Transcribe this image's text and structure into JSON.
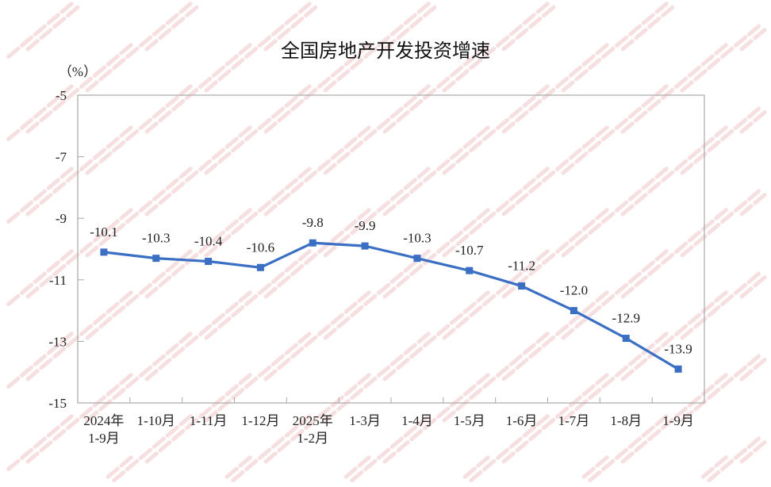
{
  "watermark": "北京房地产业协会",
  "chart_data": {
    "type": "line",
    "title": "全国房地产开发投资增速",
    "ylabel": "（%）",
    "xlabel": "",
    "categories": [
      [
        "2024年",
        "1-9月"
      ],
      [
        "1-10月"
      ],
      [
        "1-11月"
      ],
      [
        "1-12月"
      ],
      [
        "2025年",
        "1-2月"
      ],
      [
        "1-3月"
      ],
      [
        "1-4月"
      ],
      [
        "1-5月"
      ],
      [
        "1-6月"
      ],
      [
        "1-7月"
      ],
      [
        "1-8月"
      ],
      [
        "1-9月"
      ]
    ],
    "values": [
      -10.1,
      -10.3,
      -10.4,
      -10.6,
      -9.8,
      -9.9,
      -10.3,
      -10.7,
      -11.2,
      -12.0,
      -12.9,
      -13.9
    ],
    "data_labels": [
      "-10.1",
      "-10.3",
      "-10.4",
      "-10.6",
      "-9.8",
      "-9.9",
      "-10.3",
      "-10.7",
      "-11.2",
      "-12.0",
      "-12.9",
      "-13.9"
    ],
    "ylim": [
      -15,
      -5
    ],
    "yticks": [
      -5,
      -7,
      -9,
      -11,
      -13,
      -15
    ],
    "grid": false,
    "line_color": "#3a6fc4",
    "marker": "square"
  }
}
